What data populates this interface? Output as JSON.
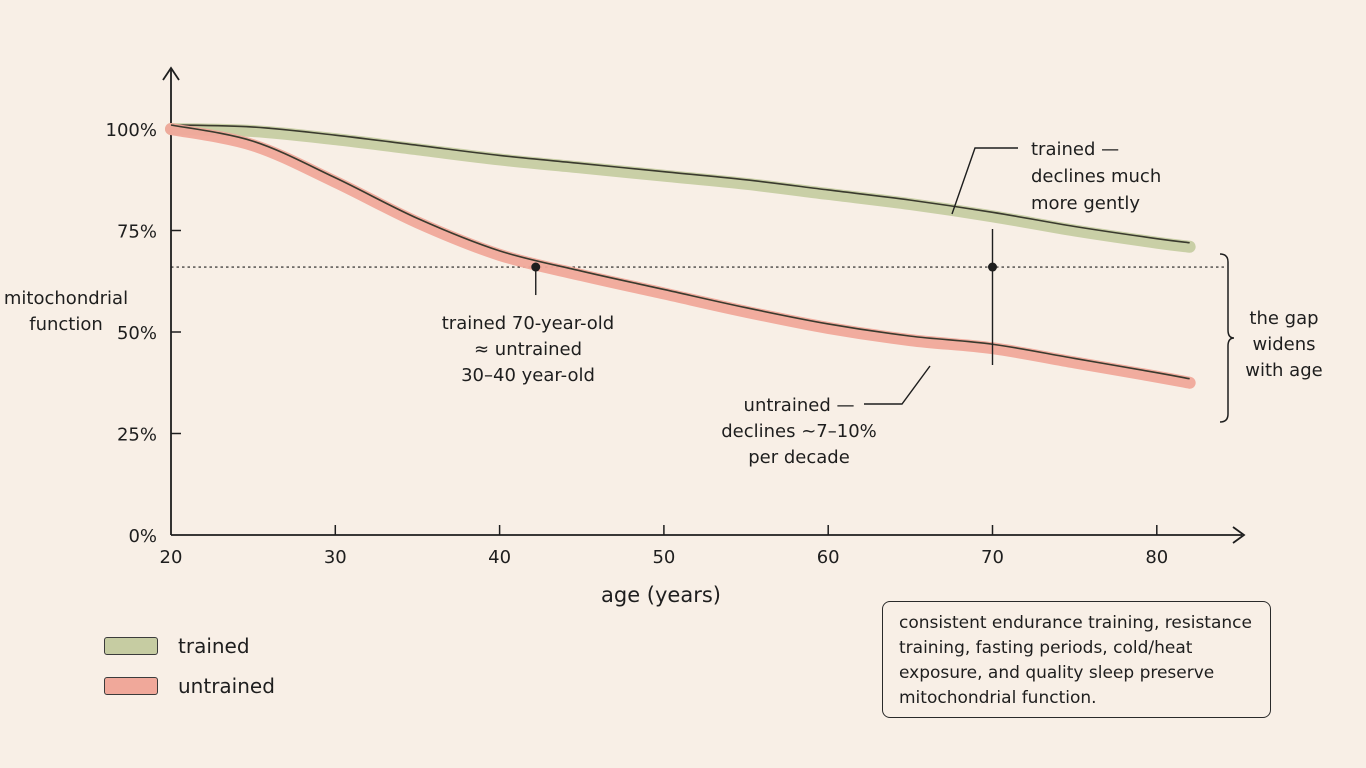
{
  "chart_data": {
    "type": "line",
    "xlabel": "age (years)",
    "ylabel_lines": [
      "mitochondrial",
      "function"
    ],
    "xlim": [
      20,
      82
    ],
    "ylim": [
      0,
      100
    ],
    "x_ticks": [
      "20",
      "30",
      "40",
      "50",
      "60",
      "70",
      "80"
    ],
    "y_ticks": [
      "0%",
      "25%",
      "50%",
      "75%",
      "100%"
    ],
    "series": [
      {
        "name": "trained",
        "color": "#c6cca2",
        "x": [
          20,
          25,
          30,
          35,
          40,
          45,
          50,
          55,
          60,
          65,
          70,
          75,
          80,
          82
        ],
        "y": [
          100,
          99.5,
          97.5,
          95,
          92.5,
          90.5,
          88.5,
          86.5,
          84,
          81.5,
          78.5,
          75,
          72,
          71
        ]
      },
      {
        "name": "untrained",
        "color": "#f0a89a",
        "x": [
          20,
          25,
          30,
          35,
          40,
          45,
          50,
          55,
          60,
          65,
          70,
          75,
          80,
          82
        ],
        "y": [
          100,
          96,
          87,
          77,
          69,
          64,
          59.5,
          55,
          51,
          48,
          46,
          42.5,
          39,
          37.5
        ]
      }
    ],
    "reference_line": {
      "y": 66,
      "style": "dotted"
    },
    "annotations": {
      "equivalence": {
        "x": [
          42.2,
          70
        ],
        "lines": [
          "trained 70-year-old",
          "≈ untrained",
          "30–40 year-old"
        ]
      },
      "trained": {
        "lines": [
          "trained —",
          "declines much",
          "more gently"
        ]
      },
      "untrained": {
        "lines": [
          "untrained —",
          "declines ~7–10%",
          "per decade"
        ]
      },
      "gap": {
        "lines": [
          "the gap",
          "widens",
          "with age"
        ]
      }
    }
  },
  "legend": [
    {
      "label": "trained",
      "color": "#c6cca2"
    },
    {
      "label": "untrained",
      "color": "#f0a89a"
    }
  ],
  "note": "consistent endurance training, resistance training, fasting periods, cold/heat exposure, and quality sleep preserve mitochondrial function."
}
